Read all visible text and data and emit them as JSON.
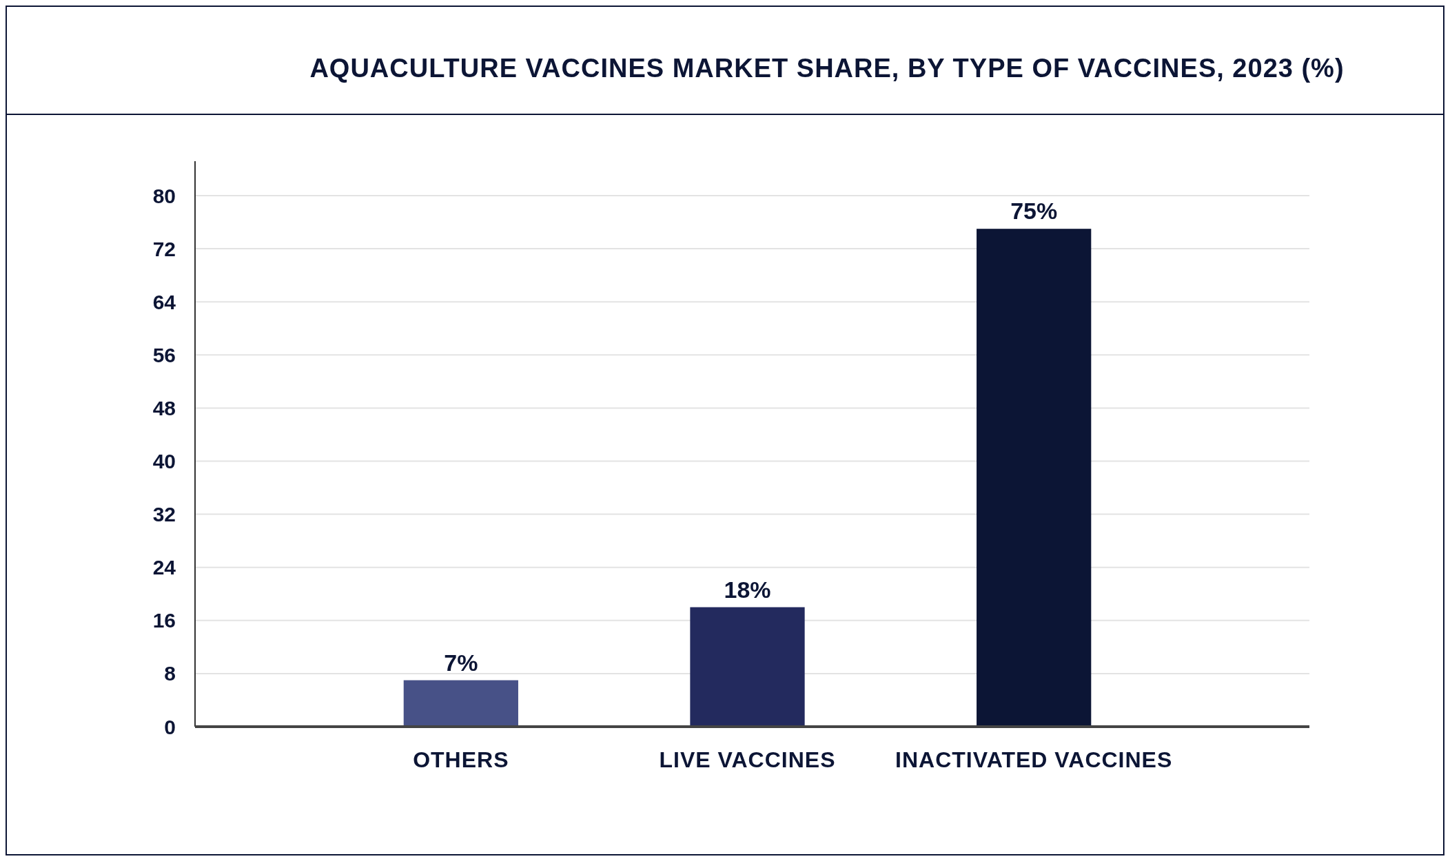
{
  "chart_data": {
    "type": "bar",
    "title": "AQUACULTURE VACCINES MARKET SHARE, BY TYPE OF VACCINES, 2023 (%)",
    "categories": [
      "OTHERS",
      "LIVE VACCINES",
      "INACTIVATED VACCINES"
    ],
    "values": [
      7,
      18,
      75
    ],
    "colors": [
      "#475187",
      "#232a5e",
      "#0c1535"
    ],
    "ylim": [
      0,
      80
    ],
    "yticks": [
      0,
      8,
      16,
      24,
      32,
      40,
      48,
      56,
      64,
      72,
      80
    ],
    "grid": "y",
    "data_labels": true,
    "value_labels": [
      "7%",
      "18%",
      "75%"
    ]
  }
}
